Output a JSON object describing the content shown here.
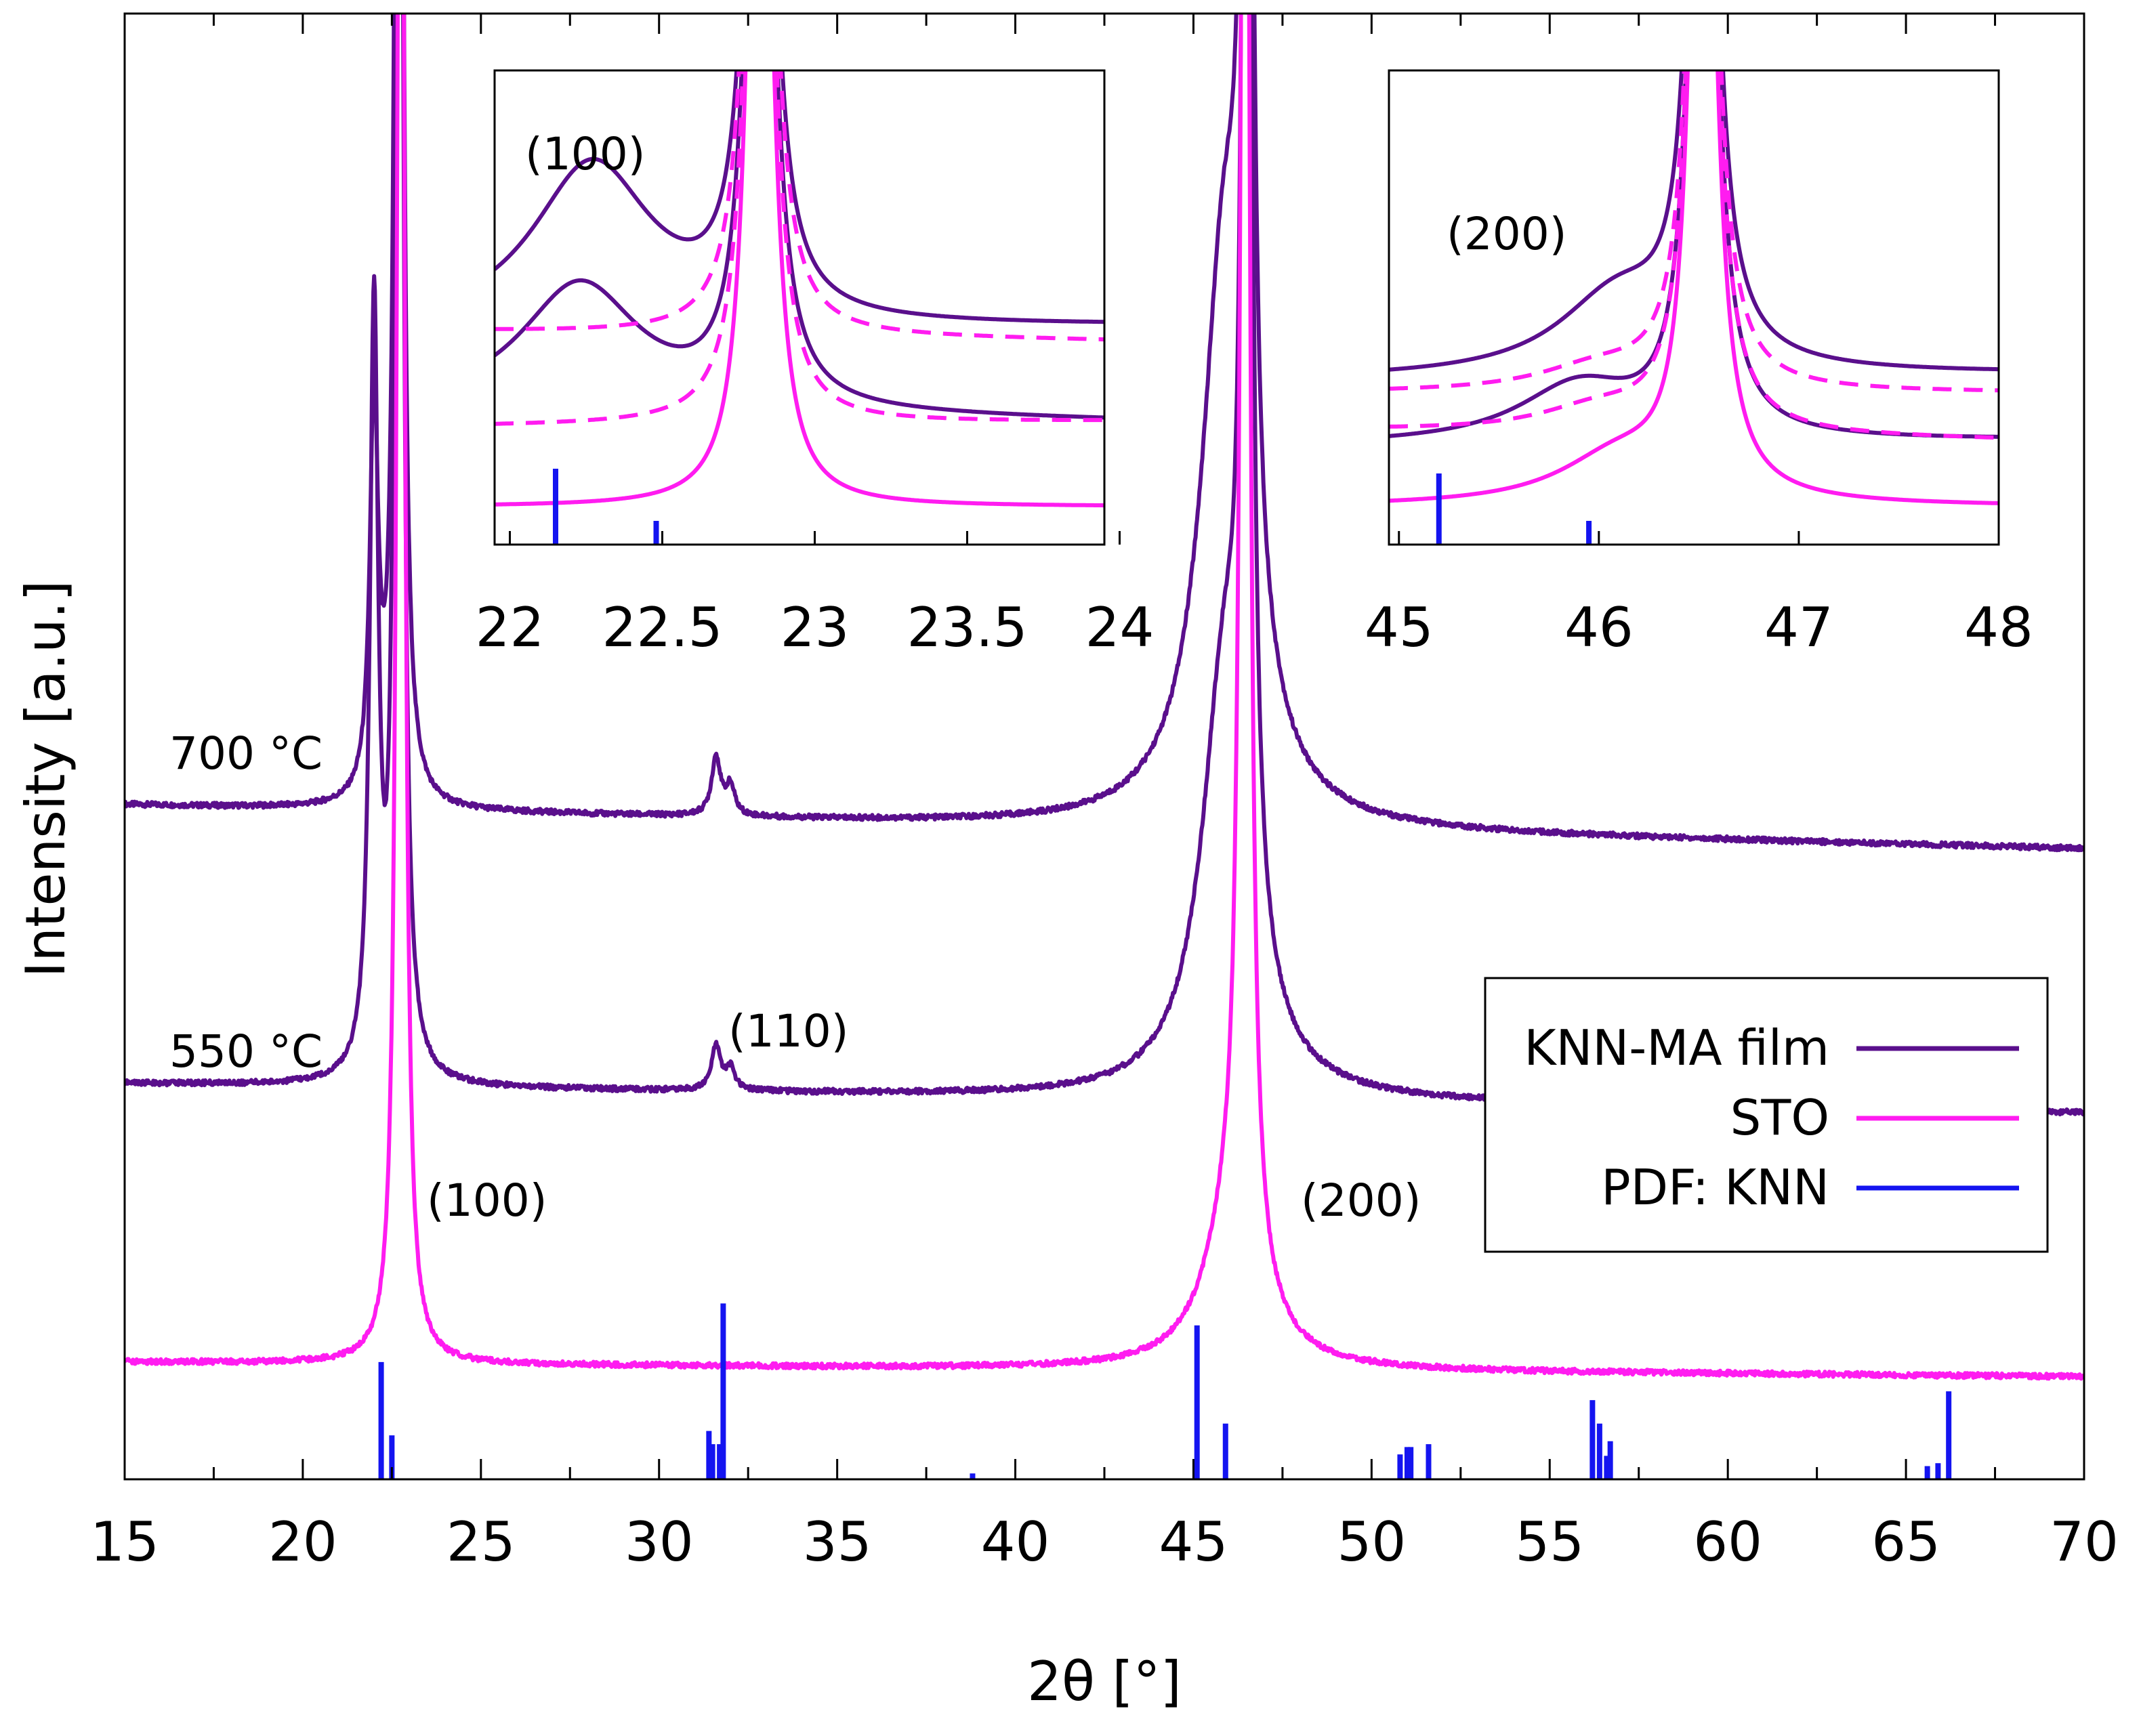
{
  "chart_data": {
    "type": "line",
    "xlabel": "2θ [°]",
    "ylabel": "Intensity [a.u.]",
    "xlim": [
      15,
      70
    ],
    "ylim": [
      0,
      100
    ],
    "xticks": [
      "15",
      "20",
      "25",
      "30",
      "35",
      "40",
      "45",
      "50",
      "55",
      "60",
      "65",
      "70"
    ],
    "x_minor_step": 2.5,
    "legend": {
      "position": "right",
      "entries": [
        {
          "label": "KNN-MA film",
          "color": "#5a0f8c",
          "series": "film"
        },
        {
          "label": "STO",
          "color": "#ff1cf0",
          "series": "sto"
        },
        {
          "label": "PDF: KNN",
          "color": "#1414f0",
          "series": "pdf"
        }
      ]
    },
    "series": [
      {
        "name": "700 °C",
        "kind": "KNN-MA film",
        "color": "#5a0f8c",
        "baseline": 46,
        "baseline_end": 43,
        "peaks": [
          {
            "x": 22.0,
            "height": 27,
            "width": 0.14
          },
          {
            "x": 22.7,
            "height": 160,
            "width": 0.1
          },
          {
            "x": 31.6,
            "height": 4,
            "width": 0.15
          },
          {
            "x": 32.0,
            "height": 2,
            "width": 0.15
          },
          {
            "x": 45.9,
            "height": 40,
            "width": 0.8
          },
          {
            "x": 46.5,
            "height": 150,
            "width": 0.12
          }
        ]
      },
      {
        "name": "550 °C",
        "kind": "KNN-MA film",
        "color": "#5a0f8c",
        "baseline": 27,
        "baseline_end": 25,
        "peaks": [
          {
            "x": 22.0,
            "height": 52,
            "width": 0.14
          },
          {
            "x": 22.7,
            "height": 170,
            "width": 0.1
          },
          {
            "x": 31.6,
            "height": 3,
            "width": 0.15
          },
          {
            "x": 32.0,
            "height": 1.5,
            "width": 0.15
          },
          {
            "x": 45.9,
            "height": 29,
            "width": 0.8
          },
          {
            "x": 46.5,
            "height": 150,
            "width": 0.12
          }
        ]
      },
      {
        "name": "STO",
        "kind": "STO",
        "color": "#ff1cf0",
        "baseline": 8,
        "baseline_end": 7,
        "peaks": [
          {
            "x": 22.75,
            "height": 150,
            "width": 0.11
          },
          {
            "x": 46.45,
            "height": 150,
            "width": 0.13
          },
          {
            "x": 46.1,
            "height": 10,
            "width": 0.9
          }
        ]
      }
    ],
    "pdf_knn": {
      "name": "PDF: KNN",
      "color": "#1414f0",
      "x": [
        22.2,
        22.5,
        31.4,
        31.5,
        31.7,
        31.8,
        38.8,
        45.1,
        45.9,
        50.8,
        51.0,
        51.1,
        51.6,
        56.2,
        56.4,
        56.6,
        56.7,
        65.6,
        65.9,
        66.2
      ],
      "y": [
        8,
        3,
        3.3,
        2.4,
        2.4,
        12,
        0.4,
        10.5,
        3.8,
        1.7,
        2.2,
        2.2,
        2.4,
        5.4,
        3.8,
        1.6,
        2.6,
        0.9,
        1.1,
        6
      ]
    },
    "annotations": [
      {
        "text": "700 °C",
        "x": 15.8,
        "y": 49.5
      },
      {
        "text": "550 °C",
        "x": 15.8,
        "y": 29
      },
      {
        "text": "(110)",
        "x": 32.1,
        "y": 30.5
      },
      {
        "text": "(100)",
        "x": 23.3,
        "y": 18.8
      },
      {
        "text": "(200)",
        "x": 49.3,
        "y": 18.8
      }
    ],
    "insets": [
      {
        "name": "inset-100",
        "xlim": [
          21.95,
          23.95
        ],
        "xticks": [
          "22",
          "22.5",
          "23",
          "23.5",
          "24"
        ],
        "label": "(100)",
        "pdf_x": [
          22.15,
          22.48
        ],
        "pdf_y": [
          0.16,
          0.05
        ],
        "traces": [
          {
            "name": "700 °C",
            "color": "#5a0f8c",
            "dashed": false,
            "base": 0.45,
            "end": 0.46,
            "shoulder_x": 22.27,
            "shoulder_h": 0.35
          },
          {
            "name": "550 °C",
            "color": "#5a0f8c",
            "dashed": false,
            "base": 0.28,
            "end": 0.26,
            "shoulder_x": 22.23,
            "shoulder_h": 0.27
          },
          {
            "name": "STO 700",
            "color": "#ff1cf0",
            "dashed": true,
            "base": 0.45,
            "end": 0.43,
            "shoulder_x": 0,
            "shoulder_h": 0
          },
          {
            "name": "STO 550",
            "color": "#ff1cf0",
            "dashed": true,
            "base": 0.25,
            "end": 0.26,
            "shoulder_x": 0,
            "shoulder_h": 0
          },
          {
            "name": "STO",
            "color": "#ff1cf0",
            "dashed": false,
            "base": 0.08,
            "end": 0.08,
            "shoulder_x": 0,
            "shoulder_h": 0
          }
        ],
        "peak_x": 22.82
      },
      {
        "name": "inset-200",
        "xlim": [
          44.95,
          48.0
        ],
        "xticks": [
          "45",
          "46",
          "47",
          "48"
        ],
        "label": "(200)",
        "pdf_x": [
          45.2,
          45.95
        ],
        "pdf_y": [
          0.15,
          0.05
        ],
        "traces": [
          {
            "name": "700 °C",
            "color": "#5a0f8c",
            "dashed": false,
            "base": 0.35,
            "end": 0.36,
            "shoulder_x": 46.1,
            "shoulder_h": 0.17
          },
          {
            "name": "550 °C",
            "color": "#5a0f8c",
            "dashed": false,
            "base": 0.21,
            "end": 0.22,
            "shoulder_x": 45.9,
            "shoulder_h": 0.12
          },
          {
            "name": "STO 700",
            "color": "#ff1cf0",
            "dashed": true,
            "base": 0.32,
            "end": 0.32,
            "shoulder_x": 46.0,
            "shoulder_h": 0.05
          },
          {
            "name": "STO 550",
            "color": "#ff1cf0",
            "dashed": true,
            "base": 0.24,
            "end": 0.22,
            "shoulder_x": 46.0,
            "shoulder_h": 0.05
          },
          {
            "name": "STO",
            "color": "#ff1cf0",
            "dashed": false,
            "base": 0.08,
            "end": 0.08,
            "shoulder_x": 46.1,
            "shoulder_h": 0.1
          }
        ],
        "peak_x": 46.52
      }
    ]
  }
}
